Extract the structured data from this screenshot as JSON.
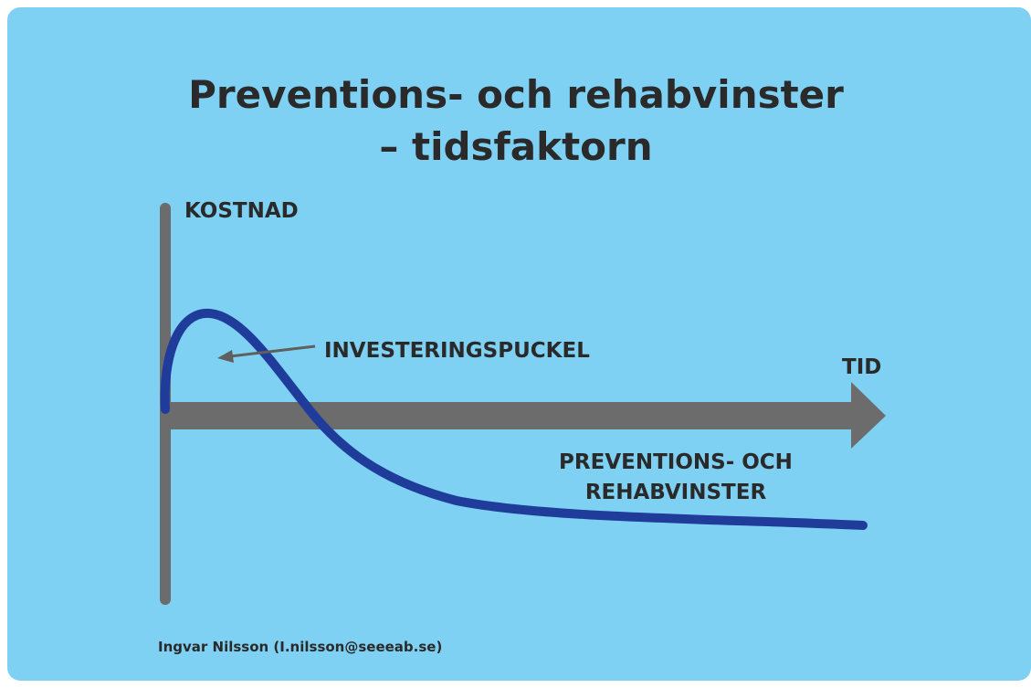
{
  "title_lines": [
    "Preventions- och rehabvinster",
    "– tidsfaktorn"
  ],
  "y_axis_label": "KOSTNAD",
  "x_axis_label": "TID",
  "annotations": {
    "hump": "INVESTERINGSPUCKEL",
    "gains_lines": [
      "PREVENTIONS- OCH",
      "REHABVINSTER"
    ]
  },
  "credit": "Ingvar Nilsson (I.nilsson@seeeab.se)"
}
